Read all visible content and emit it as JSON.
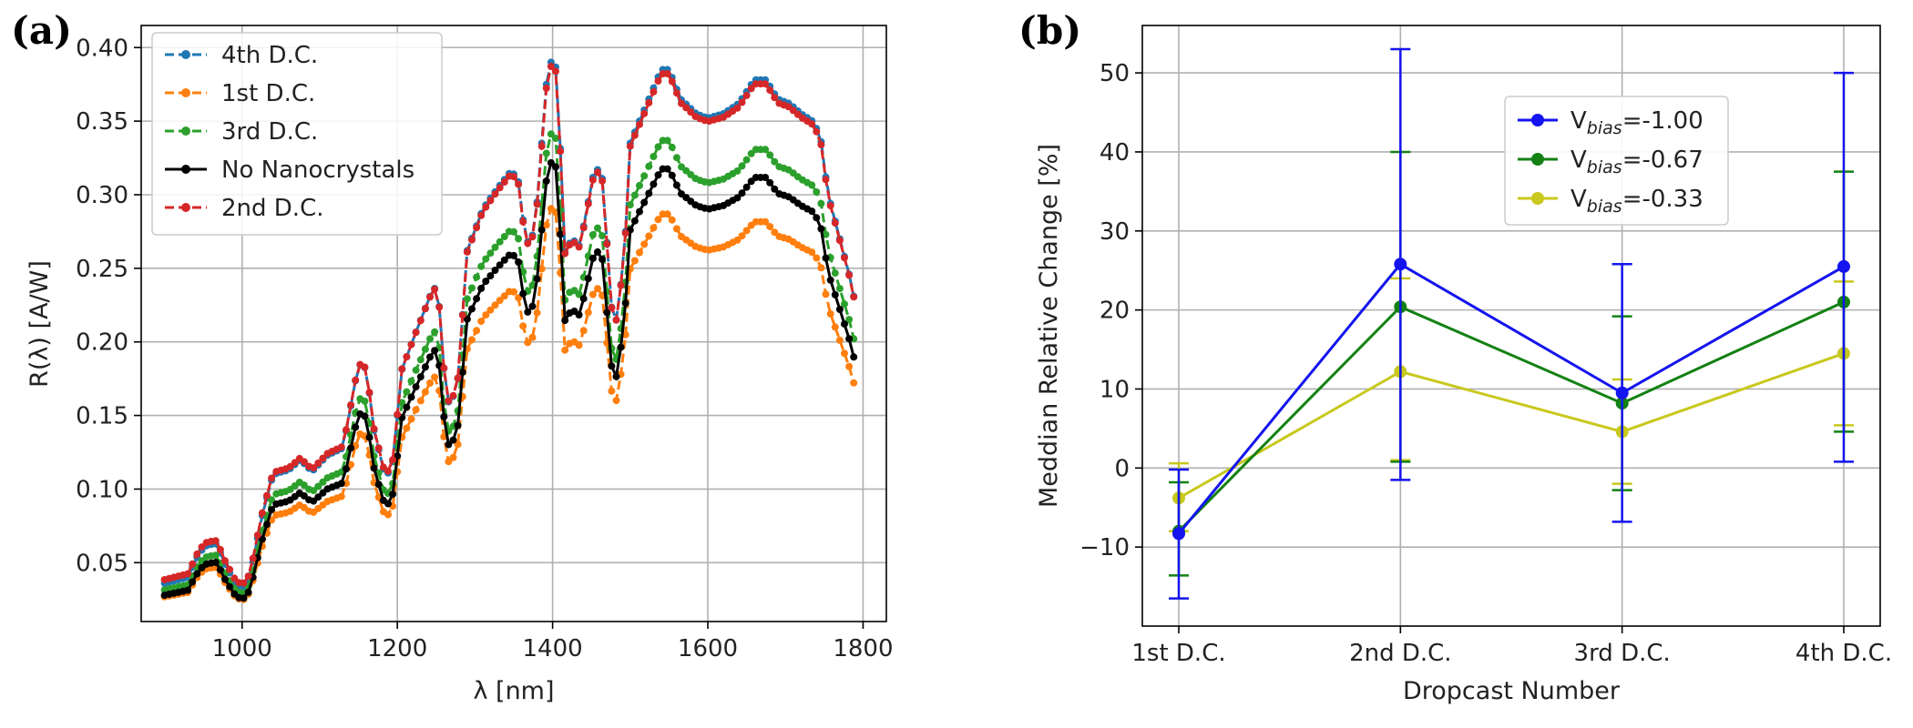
{
  "chart_data": [
    {
      "type": "line",
      "panel_label": "(a)",
      "xlabel": "λ [nm]",
      "ylabel": "R(λ) [A/W]",
      "xlim": [
        870,
        1830
      ],
      "ylim": [
        0.01,
        0.415
      ],
      "xticks": [
        1000,
        1200,
        1400,
        1600,
        1800
      ],
      "yticks": [
        0.05,
        0.1,
        0.15,
        0.2,
        0.25,
        0.3,
        0.35,
        0.4
      ],
      "ytick_labels": [
        "0.05",
        "0.10",
        "0.15",
        "0.20",
        "0.25",
        "0.30",
        "0.35",
        "0.40"
      ],
      "grid": true,
      "legend_position": "top-left",
      "x_start": 900,
      "x_end": 1790,
      "x_step": 6,
      "anchors": [
        [
          900,
          0.036
        ],
        [
          930,
          0.04
        ],
        [
          945,
          0.057
        ],
        [
          955,
          0.062
        ],
        [
          968,
          0.063
        ],
        [
          975,
          0.052
        ],
        [
          990,
          0.037
        ],
        [
          1000,
          0.032
        ],
        [
          1010,
          0.04
        ],
        [
          1025,
          0.08
        ],
        [
          1040,
          0.11
        ],
        [
          1060,
          0.113
        ],
        [
          1075,
          0.12
        ],
        [
          1090,
          0.112
        ],
        [
          1110,
          0.123
        ],
        [
          1130,
          0.128
        ],
        [
          1150,
          0.185
        ],
        [
          1160,
          0.182
        ],
        [
          1170,
          0.14
        ],
        [
          1185,
          0.107
        ],
        [
          1195,
          0.12
        ],
        [
          1205,
          0.18
        ],
        [
          1225,
          0.208
        ],
        [
          1245,
          0.235
        ],
        [
          1252,
          0.238
        ],
        [
          1262,
          0.168
        ],
        [
          1268,
          0.155
        ],
        [
          1278,
          0.175
        ],
        [
          1290,
          0.262
        ],
        [
          1310,
          0.29
        ],
        [
          1330,
          0.305
        ],
        [
          1345,
          0.315
        ],
        [
          1355,
          0.313
        ],
        [
          1365,
          0.27
        ],
        [
          1372,
          0.265
        ],
        [
          1380,
          0.295
        ],
        [
          1392,
          0.375
        ],
        [
          1402,
          0.4
        ],
        [
          1408,
          0.36
        ],
        [
          1415,
          0.26
        ],
        [
          1425,
          0.27
        ],
        [
          1435,
          0.265
        ],
        [
          1455,
          0.32
        ],
        [
          1465,
          0.31
        ],
        [
          1475,
          0.225
        ],
        [
          1482,
          0.215
        ],
        [
          1492,
          0.255
        ],
        [
          1500,
          0.335
        ],
        [
          1520,
          0.36
        ],
        [
          1540,
          0.385
        ],
        [
          1550,
          0.385
        ],
        [
          1565,
          0.365
        ],
        [
          1585,
          0.355
        ],
        [
          1600,
          0.352
        ],
        [
          1620,
          0.355
        ],
        [
          1640,
          0.362
        ],
        [
          1660,
          0.378
        ],
        [
          1675,
          0.378
        ],
        [
          1690,
          0.365
        ],
        [
          1705,
          0.362
        ],
        [
          1720,
          0.355
        ],
        [
          1735,
          0.35
        ],
        [
          1745,
          0.34
        ],
        [
          1755,
          0.3
        ],
        [
          1765,
          0.28
        ],
        [
          1775,
          0.26
        ],
        [
          1785,
          0.24
        ],
        [
          1790,
          0.225
        ]
      ],
      "series": [
        {
          "name": "4th D.C.",
          "color": "#1f77b4",
          "style": "dashed",
          "scale": 1.0,
          "offset": 0.0
        },
        {
          "name": "1st D.C.",
          "color": "#ff7f0e",
          "style": "dashed",
          "scale": 0.745,
          "offset": 0.0
        },
        {
          "name": "3rd D.C.",
          "color": "#2ca02c",
          "style": "dashed",
          "scale": 0.875,
          "offset": 0.0
        },
        {
          "name": "No Nanocrystals",
          "color": "#000000",
          "style": "solid",
          "scale": 0.83,
          "offset": -0.002
        },
        {
          "name": "2nd D.C.",
          "color": "#d62728",
          "style": "dashed",
          "scale": 0.985,
          "offset": 0.003
        }
      ]
    },
    {
      "type": "line",
      "panel_label": "(b)",
      "xlabel": "Dropcast Number",
      "ylabel": "Meddian Relative Change [%]",
      "categories": [
        "1st D.C.",
        "2nd D.C.",
        "3rd D.C.",
        "4th D.C."
      ],
      "ylim": [
        -20,
        56
      ],
      "yticks": [
        -10,
        0,
        10,
        20,
        30,
        40,
        50
      ],
      "ytick_labels": [
        "−10",
        "0",
        "10",
        "20",
        "30",
        "40",
        "50"
      ],
      "grid": true,
      "legend_position": "upper-center",
      "series": [
        {
          "name": "V",
          "sub": "bias",
          "suffix": "=-1.00",
          "color": "#1414ee",
          "values": [
            -8.3,
            25.8,
            9.5,
            25.5
          ],
          "lower": [
            -16.5,
            -1.5,
            -6.8,
            0.8
          ],
          "upper": [
            -0.2,
            53.0,
            25.8,
            50.0
          ]
        },
        {
          "name": "V",
          "sub": "bias",
          "suffix": "=-0.67",
          "color": "#138113",
          "values": [
            -8.0,
            20.4,
            8.2,
            21.0
          ],
          "lower": [
            -13.6,
            0.8,
            -2.8,
            4.6
          ],
          "upper": [
            -1.8,
            40.0,
            19.2,
            37.5
          ]
        },
        {
          "name": "V",
          "sub": "bias",
          "suffix": "=-0.33",
          "color": "#c8c81e",
          "values": [
            -3.8,
            12.2,
            4.6,
            14.5
          ],
          "lower": [
            -8.0,
            1.0,
            -2.0,
            5.4
          ],
          "upper": [
            0.6,
            24.0,
            11.2,
            23.6
          ]
        }
      ]
    }
  ]
}
